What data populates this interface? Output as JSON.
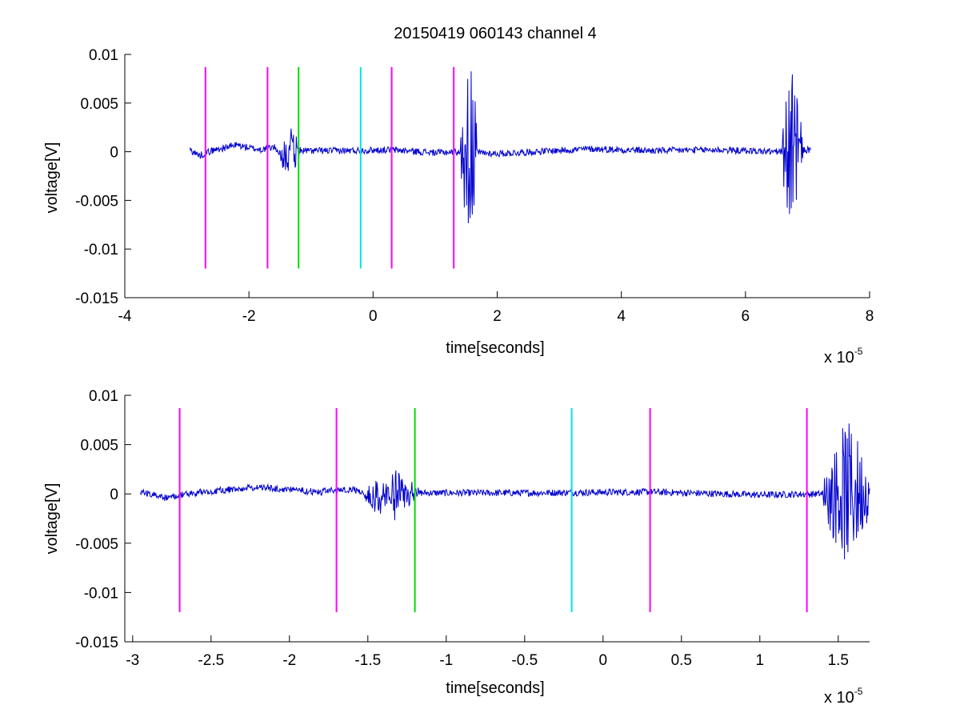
{
  "figure": {
    "title": "20150419 060143 channel 4"
  },
  "chart_data": [
    {
      "type": "line",
      "xlabel": "time[seconds]",
      "ylabel": "voltage[V]",
      "x_multiplier": "x 10",
      "x_multiplier_exp": "-5",
      "xlim": [
        -4,
        8
      ],
      "ylim": [
        -0.015,
        0.01
      ],
      "xticks": [
        -4,
        -2,
        0,
        2,
        4,
        6,
        8
      ],
      "xtick_labels": [
        "-4",
        "-2",
        "0",
        "2",
        "4",
        "6",
        "8"
      ],
      "yticks": [
        0.01,
        0.005,
        0,
        -0.005,
        -0.01,
        -0.015
      ],
      "ytick_labels": [
        "0.01",
        "0.005",
        "0",
        "-0.005",
        "-0.01",
        "-0.015"
      ],
      "grid": false,
      "signal": {
        "color": "#0000cc",
        "x_range": [
          -2.95,
          7.05
        ],
        "anchors": [
          [
            -2.95,
            0.0002
          ],
          [
            -2.8,
            -0.0004
          ],
          [
            -2.6,
            0.0001
          ],
          [
            -2.2,
            0.0007
          ],
          [
            -2.0,
            0.0004
          ],
          [
            -1.8,
            0.0002
          ],
          [
            -1.6,
            0.0005
          ],
          [
            -1.45,
            -0.0004
          ],
          [
            -1.2,
            0.0001
          ],
          [
            -0.5,
            0.0001
          ],
          [
            0.3,
            0.0002
          ],
          [
            1.0,
            -0.0001
          ],
          [
            1.4,
            0.0
          ],
          [
            2.0,
            -0.0002
          ],
          [
            3.5,
            0.0003
          ],
          [
            4.5,
            0.0001
          ],
          [
            5.5,
            0.0002
          ],
          [
            6.5,
            0.0
          ],
          [
            7.05,
            0.0002
          ]
        ],
        "bursts": [
          {
            "center": -1.35,
            "width": 0.18,
            "amp": 0.0025
          },
          {
            "center": 1.55,
            "width": 0.14,
            "amp": 0.011
          },
          {
            "center": 6.75,
            "width": 0.18,
            "amp": 0.008
          }
        ]
      },
      "markers": [
        {
          "x": -2.7,
          "color": "#ff00ff"
        },
        {
          "x": -1.7,
          "color": "#ff00ff"
        },
        {
          "x": -1.2,
          "color": "#00dd00"
        },
        {
          "x": -0.2,
          "color": "#00e5e5"
        },
        {
          "x": 0.3,
          "color": "#ff00ff"
        },
        {
          "x": 1.3,
          "color": "#ff00ff"
        }
      ],
      "marker_y_range": [
        -0.012,
        0.0087
      ]
    },
    {
      "type": "line",
      "xlabel": "time[seconds]",
      "ylabel": "voltage[V]",
      "x_multiplier": "x 10",
      "x_multiplier_exp": "-5",
      "xlim": [
        -3.05,
        1.7
      ],
      "ylim": [
        -0.015,
        0.01
      ],
      "xticks": [
        -3,
        -2.5,
        -2,
        -1.5,
        -1,
        -0.5,
        0,
        0.5,
        1,
        1.5
      ],
      "xtick_labels": [
        "-3",
        "-2.5",
        "-2",
        "-1.5",
        "-1",
        "-0.5",
        "0",
        "0.5",
        "1",
        "1.5"
      ],
      "yticks": [
        0.01,
        0.005,
        0,
        -0.005,
        -0.01,
        -0.015
      ],
      "ytick_labels": [
        "0.01",
        "0.005",
        "0",
        "-0.005",
        "-0.01",
        "-0.015"
      ],
      "grid": false,
      "signal": {
        "color": "#0000cc",
        "x_range": [
          -2.95,
          1.7
        ],
        "anchors": [
          [
            -2.95,
            0.0002
          ],
          [
            -2.8,
            -0.0004
          ],
          [
            -2.6,
            0.0001
          ],
          [
            -2.2,
            0.0007
          ],
          [
            -2.0,
            0.0004
          ],
          [
            -1.8,
            0.0002
          ],
          [
            -1.6,
            0.0005
          ],
          [
            -1.45,
            -0.0004
          ],
          [
            -1.2,
            0.0001
          ],
          [
            -0.5,
            0.0001
          ],
          [
            0.3,
            0.0002
          ],
          [
            1.0,
            -0.0001
          ],
          [
            1.4,
            0.0
          ],
          [
            1.7,
            0.0002
          ]
        ],
        "bursts": [
          {
            "center": -1.35,
            "width": 0.18,
            "amp": 0.0025
          },
          {
            "center": 1.56,
            "width": 0.16,
            "amp": 0.0075
          }
        ]
      },
      "markers": [
        {
          "x": -2.7,
          "color": "#ff00ff"
        },
        {
          "x": -1.7,
          "color": "#ff00ff"
        },
        {
          "x": -1.2,
          "color": "#00dd00"
        },
        {
          "x": -0.2,
          "color": "#00e5e5"
        },
        {
          "x": 0.3,
          "color": "#ff00ff"
        },
        {
          "x": 1.3,
          "color": "#ff00ff"
        }
      ],
      "marker_y_range": [
        -0.012,
        0.0087
      ]
    }
  ]
}
